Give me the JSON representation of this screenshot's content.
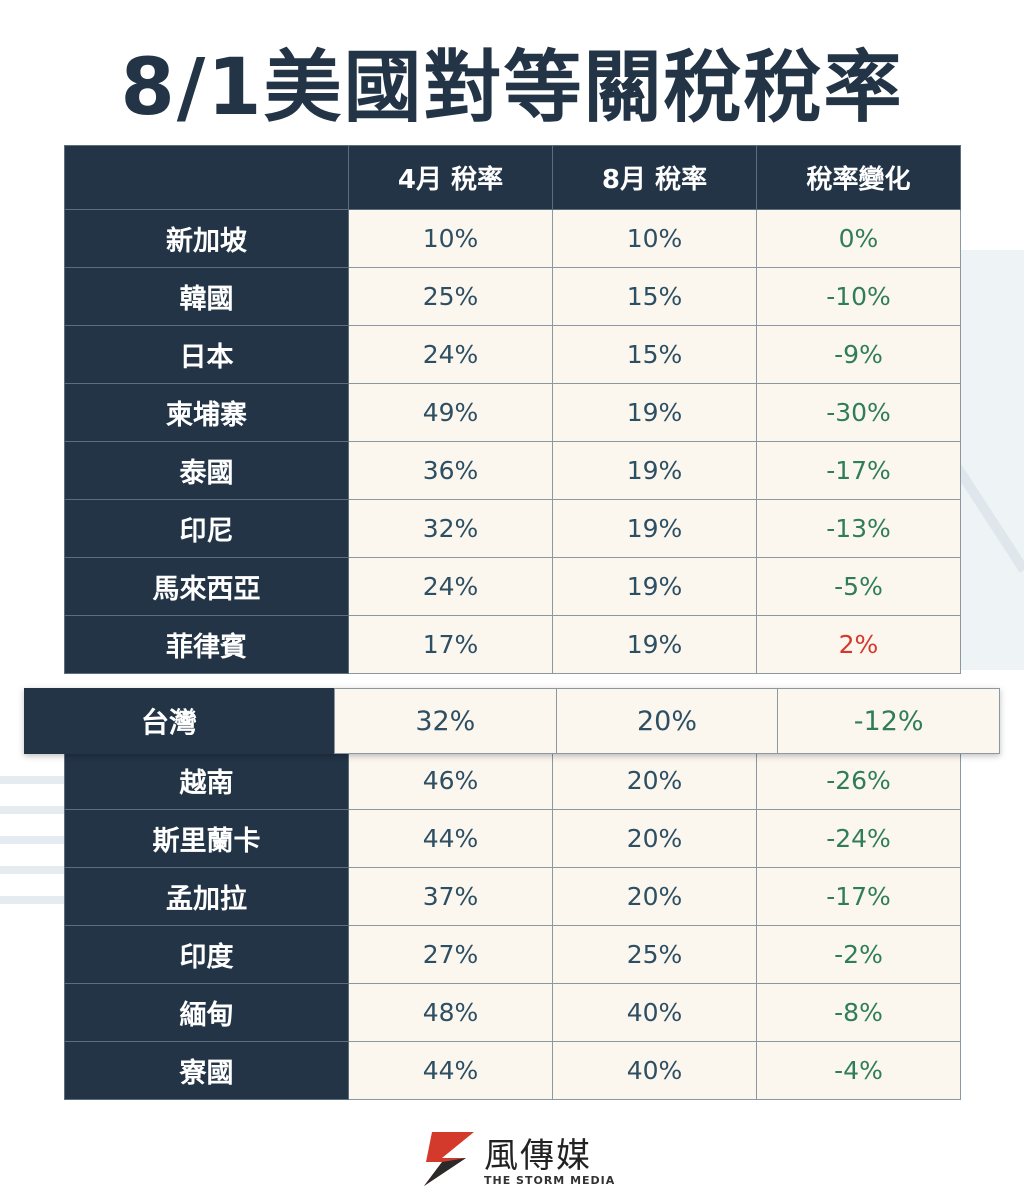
{
  "title": "8/1美國對等關稅稅率",
  "table": {
    "headers": [
      "",
      "4月 稅率",
      "8月 稅率",
      "稅率變化"
    ],
    "rows_top": [
      {
        "country": "新加坡",
        "april": "10%",
        "august": "10%",
        "change": "0%"
      },
      {
        "country": "韓國",
        "april": "25%",
        "august": "15%",
        "change": "-10%"
      },
      {
        "country": "日本",
        "april": "24%",
        "august": "15%",
        "change": "-9%"
      },
      {
        "country": "柬埔寨",
        "april": "49%",
        "august": "19%",
        "change": "-30%"
      },
      {
        "country": "泰國",
        "april": "36%",
        "august": "19%",
        "change": "-17%"
      },
      {
        "country": "印尼",
        "april": "32%",
        "august": "19%",
        "change": "-13%"
      },
      {
        "country": "馬來西亞",
        "april": "24%",
        "august": "19%",
        "change": "-5%"
      },
      {
        "country": "菲律賓",
        "april": "17%",
        "august": "19%",
        "change": "2%"
      }
    ],
    "highlight": {
      "country": "台灣",
      "april": "32%",
      "august": "20%",
      "change": "-12%"
    },
    "rows_bottom": [
      {
        "country": "越南",
        "april": "46%",
        "august": "20%",
        "change": "-26%"
      },
      {
        "country": "斯里蘭卡",
        "april": "44%",
        "august": "20%",
        "change": "-24%"
      },
      {
        "country": "孟加拉",
        "april": "37%",
        "august": "20%",
        "change": "-17%"
      },
      {
        "country": "印度",
        "april": "27%",
        "august": "25%",
        "change": "-2%"
      },
      {
        "country": "緬甸",
        "april": "48%",
        "august": "40%",
        "change": "-8%"
      },
      {
        "country": "寮國",
        "april": "44%",
        "august": "40%",
        "change": "-4%"
      }
    ]
  },
  "colors": {
    "navy": "#223446",
    "cream": "#fbf6ee",
    "decrease": "#2f7d5a",
    "increase": "#d43a2c"
  },
  "logo": {
    "name_cn": "風傳媒",
    "name_en": "THE STORM MEDIA",
    "icon": "storm-media-logo-icon"
  }
}
